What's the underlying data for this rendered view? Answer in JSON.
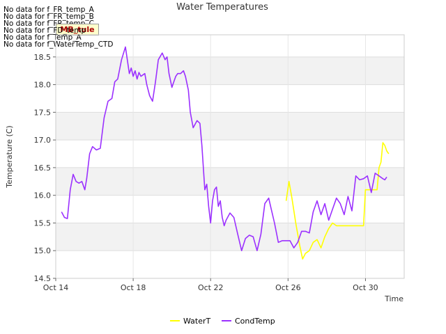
{
  "chart_data": {
    "type": "line",
    "title": "Water Temperatures",
    "xlabel": "Time",
    "ylabel": "Temperature (C)",
    "ylim": [
      14.5,
      18.9
    ],
    "xlim_days": [
      0,
      18
    ],
    "yticks": [
      "14.5",
      "15.0",
      "15.5",
      "16.0",
      "16.5",
      "17.0",
      "17.5",
      "18.0",
      "18.5"
    ],
    "xticks": [
      {
        "day": 0,
        "label": "Oct 14"
      },
      {
        "day": 4,
        "label": "Oct 18"
      },
      {
        "day": 8,
        "label": "Oct 22"
      },
      {
        "day": 12,
        "label": "Oct 26"
      },
      {
        "day": 16,
        "label": "Oct 30"
      }
    ],
    "no_data_messages": [
      "No data for f_FR_temp_A",
      "No data for f_FR_temp_B",
      "No data for f_FR_temp_C",
      "No data for f_FD_temp",
      "No data for f_Temp_A",
      "No data for f_WaterTemp_CTD"
    ],
    "badge_text": "MB_tule",
    "series": [
      {
        "name": "WaterT",
        "color": "#ffff00",
        "x": [
          11.9,
          12.05,
          12.2,
          12.4,
          12.6,
          12.75,
          12.9,
          13.1,
          13.3,
          13.5,
          13.7,
          13.9,
          14.1,
          14.3,
          14.5,
          15.0,
          15.5,
          15.9,
          16.0,
          16.3,
          16.6,
          16.7,
          16.8,
          16.9,
          17.0,
          17.1,
          17.2
        ],
        "values": [
          15.9,
          16.25,
          15.95,
          15.5,
          15.1,
          14.85,
          14.95,
          15.0,
          15.15,
          15.2,
          15.05,
          15.25,
          15.4,
          15.5,
          15.45,
          15.45,
          15.45,
          15.45,
          16.1,
          16.1,
          16.1,
          16.5,
          16.6,
          16.95,
          16.9,
          16.8,
          16.75
        ]
      },
      {
        "name": "CondTemp",
        "color": "#9b30ff",
        "x": [
          0.3,
          0.45,
          0.6,
          0.75,
          0.9,
          1.05,
          1.2,
          1.35,
          1.5,
          1.6,
          1.75,
          1.9,
          2.0,
          2.1,
          2.3,
          2.5,
          2.7,
          2.9,
          3.05,
          3.2,
          3.4,
          3.6,
          3.8,
          3.9,
          4.0,
          4.1,
          4.2,
          4.3,
          4.4,
          4.6,
          4.7,
          4.85,
          5.0,
          5.15,
          5.3,
          5.5,
          5.65,
          5.75,
          5.85,
          6.0,
          6.1,
          6.2,
          6.3,
          6.45,
          6.6,
          6.7,
          6.85,
          6.95,
          7.1,
          7.3,
          7.45,
          7.55,
          7.7,
          7.8,
          7.9,
          8.0,
          8.1,
          8.2,
          8.3,
          8.4,
          8.5,
          8.6,
          8.7,
          8.8,
          9.0,
          9.2,
          9.4,
          9.6,
          9.8,
          10.0,
          10.2,
          10.4,
          10.6,
          10.8,
          11.0,
          11.1,
          11.3,
          11.5,
          11.7,
          11.9,
          12.1,
          12.3,
          12.5,
          12.7,
          12.9,
          13.1,
          13.3,
          13.5,
          13.7,
          13.9,
          14.1,
          14.3,
          14.5,
          14.7,
          14.9,
          15.1,
          15.3,
          15.5,
          15.7,
          15.9,
          16.1,
          16.3,
          16.5,
          16.7,
          16.9,
          17.0,
          17.1
        ],
        "values": [
          15.7,
          15.6,
          15.58,
          16.1,
          16.38,
          16.25,
          16.22,
          16.25,
          16.1,
          16.3,
          16.75,
          16.88,
          16.85,
          16.82,
          16.85,
          17.4,
          17.7,
          17.75,
          18.05,
          18.1,
          18.45,
          18.68,
          18.2,
          18.3,
          18.15,
          18.25,
          18.1,
          18.22,
          18.15,
          18.2,
          18.0,
          17.8,
          17.7,
          18.05,
          18.45,
          18.57,
          18.45,
          18.5,
          18.2,
          17.95,
          18.05,
          18.15,
          18.2,
          18.2,
          18.25,
          18.15,
          17.9,
          17.5,
          17.22,
          17.35,
          17.3,
          16.9,
          16.1,
          16.2,
          15.8,
          15.5,
          15.9,
          16.1,
          16.15,
          15.8,
          15.9,
          15.6,
          15.45,
          15.55,
          15.68,
          15.6,
          15.3,
          15.0,
          15.22,
          15.28,
          15.25,
          15.0,
          15.3,
          15.85,
          15.95,
          15.8,
          15.5,
          15.15,
          15.18,
          15.18,
          15.18,
          15.05,
          15.15,
          15.35,
          15.35,
          15.32,
          15.7,
          15.9,
          15.65,
          15.85,
          15.55,
          15.75,
          15.95,
          15.85,
          15.65,
          15.98,
          15.72,
          16.35,
          16.28,
          16.3,
          16.35,
          16.05,
          16.4,
          16.35,
          16.3,
          16.28,
          16.33
        ]
      }
    ],
    "legend": {
      "placement": "bottom-center",
      "items": [
        "WaterT",
        "CondTemp"
      ]
    }
  }
}
